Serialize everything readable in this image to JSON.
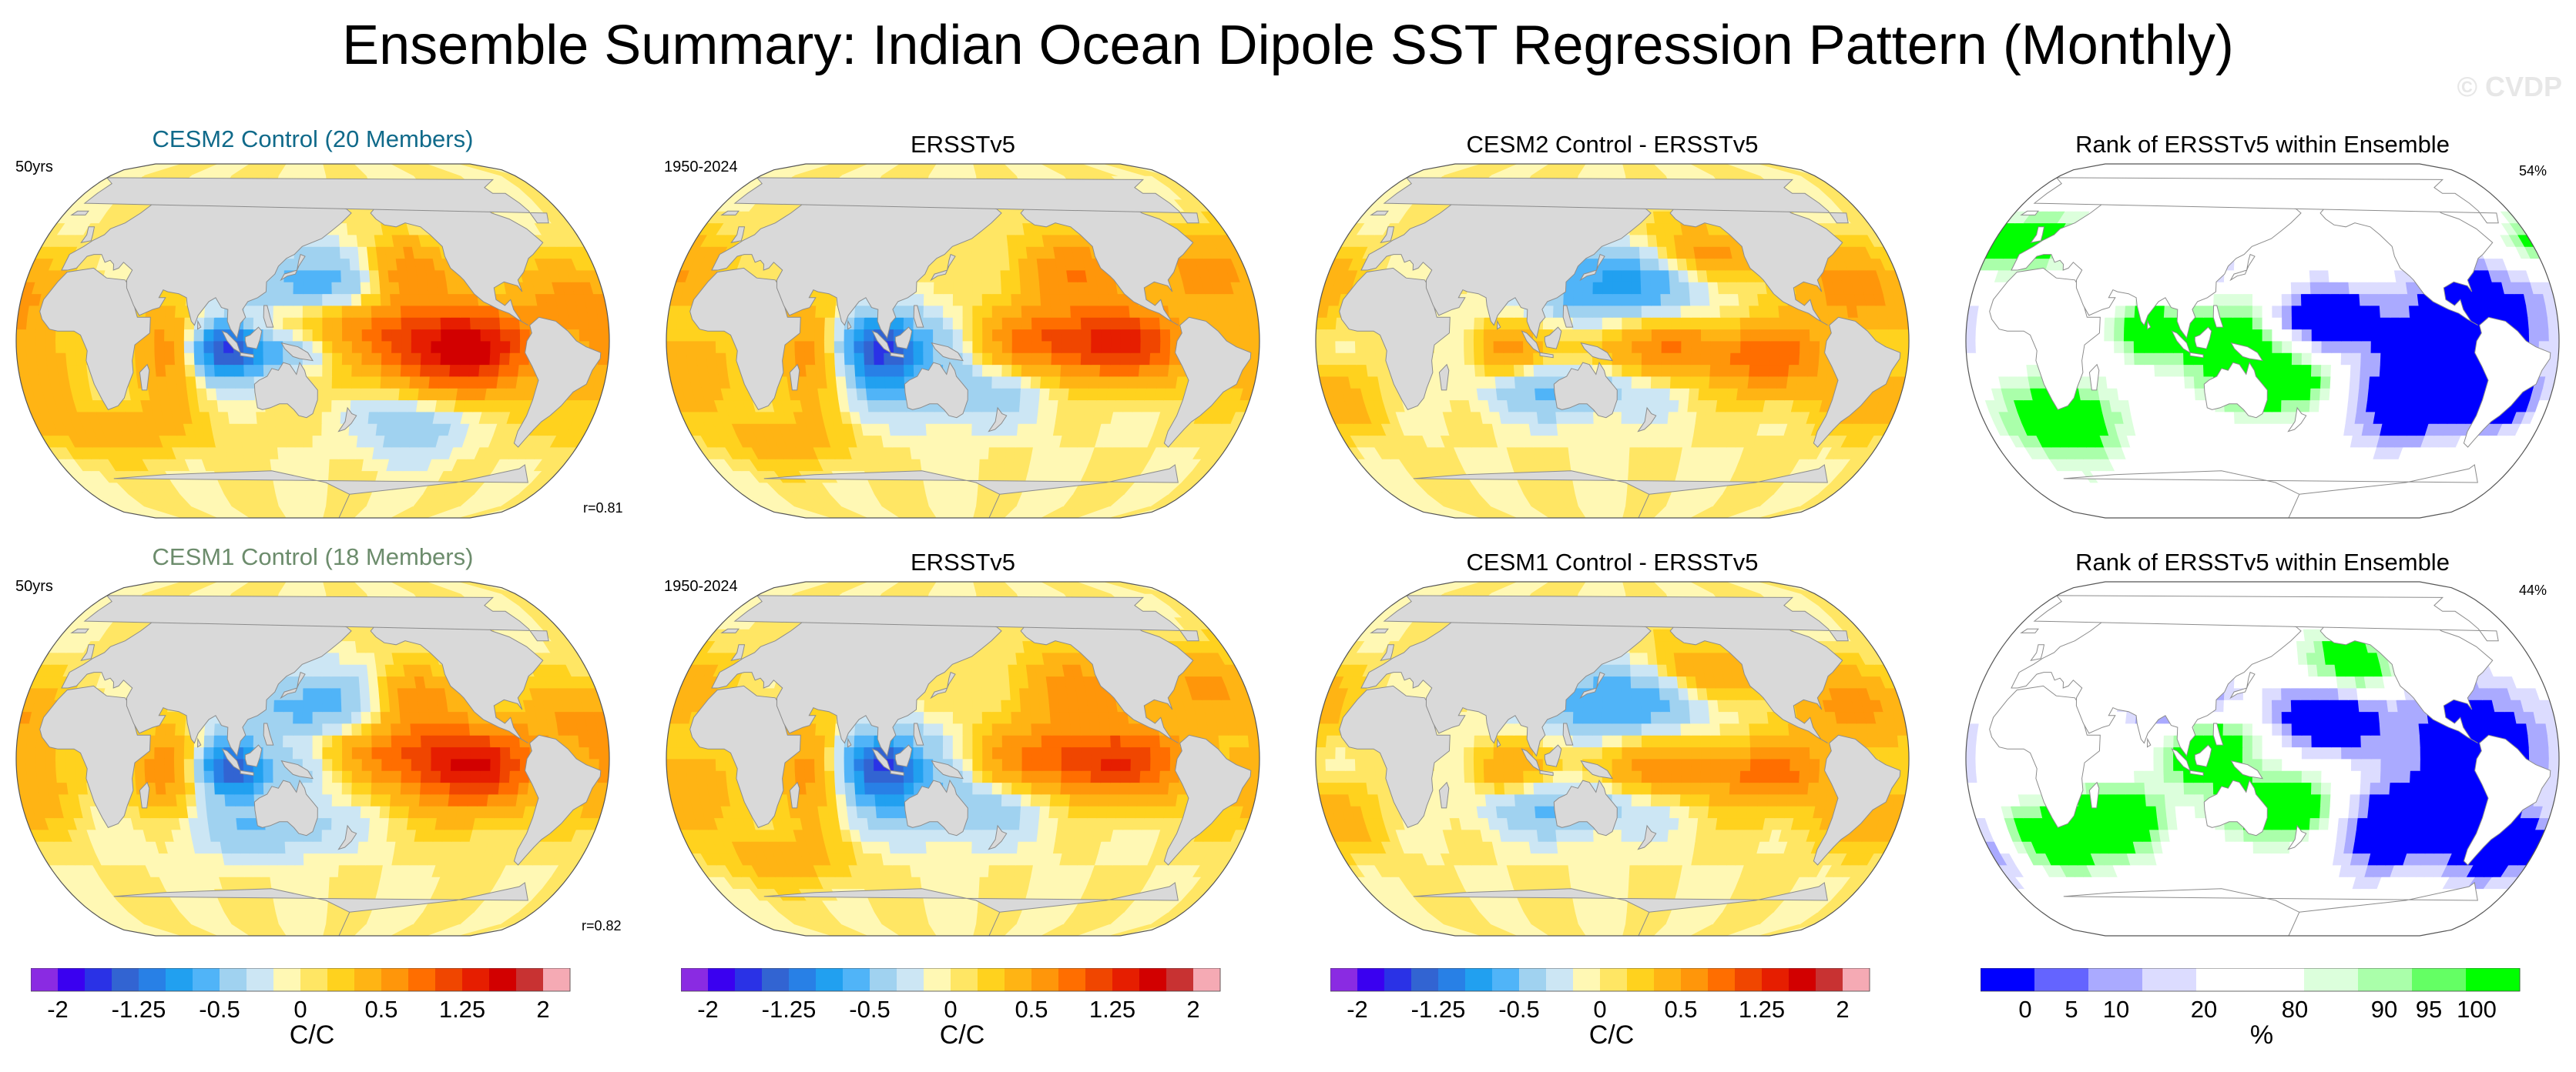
{
  "figure": {
    "title": "Ensemble Summary: Indian Ocean Dipole SST Regression Pattern (Monthly)",
    "watermark": "© CVDP"
  },
  "colors": {
    "land": "#d9d9d9",
    "coast": "#8c8c8c",
    "rank_low": "#0000ff",
    "rank_high": "#00ff00",
    "title_cesm2": "#106a8a",
    "title_cesm1": "#6c8c6c"
  },
  "rows": [
    {
      "ensemble_title": "CESM2 Control (20 Members)",
      "ensemble_years": "50yrs",
      "ensemble_corr": "r=0.81",
      "obs_title": "ERSSTv5",
      "obs_years": "1950-2024",
      "diff_title": "CESM2 Control - ERSSTv5",
      "rank_title": "Rank of ERSSTv5 within Ensemble",
      "rank_pct": "54%"
    },
    {
      "ensemble_title": "CESM1 Control (18 Members)",
      "ensemble_years": "50yrs",
      "ensemble_corr": "r=0.82",
      "obs_title": "ERSSTv5",
      "obs_years": "1950-2024",
      "diff_title": "CESM1 Control - ERSSTv5",
      "rank_title": "Rank of ERSSTv5 within Ensemble",
      "rank_pct": "44%"
    }
  ],
  "chart_data": {
    "type": "heatmap",
    "projection": "Robinson",
    "variable": "SST regression on Indian Ocean Dipole index",
    "sst_colorbar": {
      "unit_label": "C/C",
      "tick_labels": [
        "-2",
        "-1.25",
        "-0.5",
        "0",
        "0.5",
        "1.25",
        "2"
      ],
      "colors": [
        "#8a2be2",
        "#3a00f0",
        "#2a32e6",
        "#3264d2",
        "#2880e6",
        "#21a0f0",
        "#50b4f8",
        "#a0d2f0",
        "#cce6f4",
        "#fff8b4",
        "#ffe664",
        "#ffd21e",
        "#ffb414",
        "#ff960a",
        "#ff6e00",
        "#f04600",
        "#e61e00",
        "#d20000",
        "#c83232",
        "#f5aab4"
      ]
    },
    "rank_colorbar": {
      "unit_label": "%",
      "tick_labels": [
        "0",
        "5",
        "10",
        "20",
        "80",
        "90",
        "95",
        "100"
      ],
      "colors": [
        "#0000ff",
        "#6464ff",
        "#aaaaff",
        "#dcdcff",
        "#ffffff",
        "#ffffff",
        "#dcffdc",
        "#aaffaa",
        "#64ff64",
        "#00ff00"
      ]
    },
    "panels": [
      {
        "row": 0,
        "col": 0,
        "label": "CESM2 Control (20 Members)",
        "years": "50yrs",
        "pattern_correlation": 0.81
      },
      {
        "row": 0,
        "col": 1,
        "label": "ERSSTv5",
        "years": "1950-2024"
      },
      {
        "row": 0,
        "col": 2,
        "label": "CESM2 Control - ERSSTv5"
      },
      {
        "row": 0,
        "col": 3,
        "label": "Rank of ERSSTv5 within Ensemble",
        "percent": 54
      },
      {
        "row": 1,
        "col": 0,
        "label": "CESM1 Control (18 Members)",
        "years": "50yrs",
        "pattern_correlation": 0.82
      },
      {
        "row": 1,
        "col": 1,
        "label": "ERSSTv5",
        "years": "1950-2024"
      },
      {
        "row": 1,
        "col": 2,
        "label": "CESM1 Control - ERSSTv5"
      },
      {
        "row": 1,
        "col": 3,
        "label": "Rank of ERSSTv5 within Ensemble",
        "percent": 44
      }
    ]
  }
}
